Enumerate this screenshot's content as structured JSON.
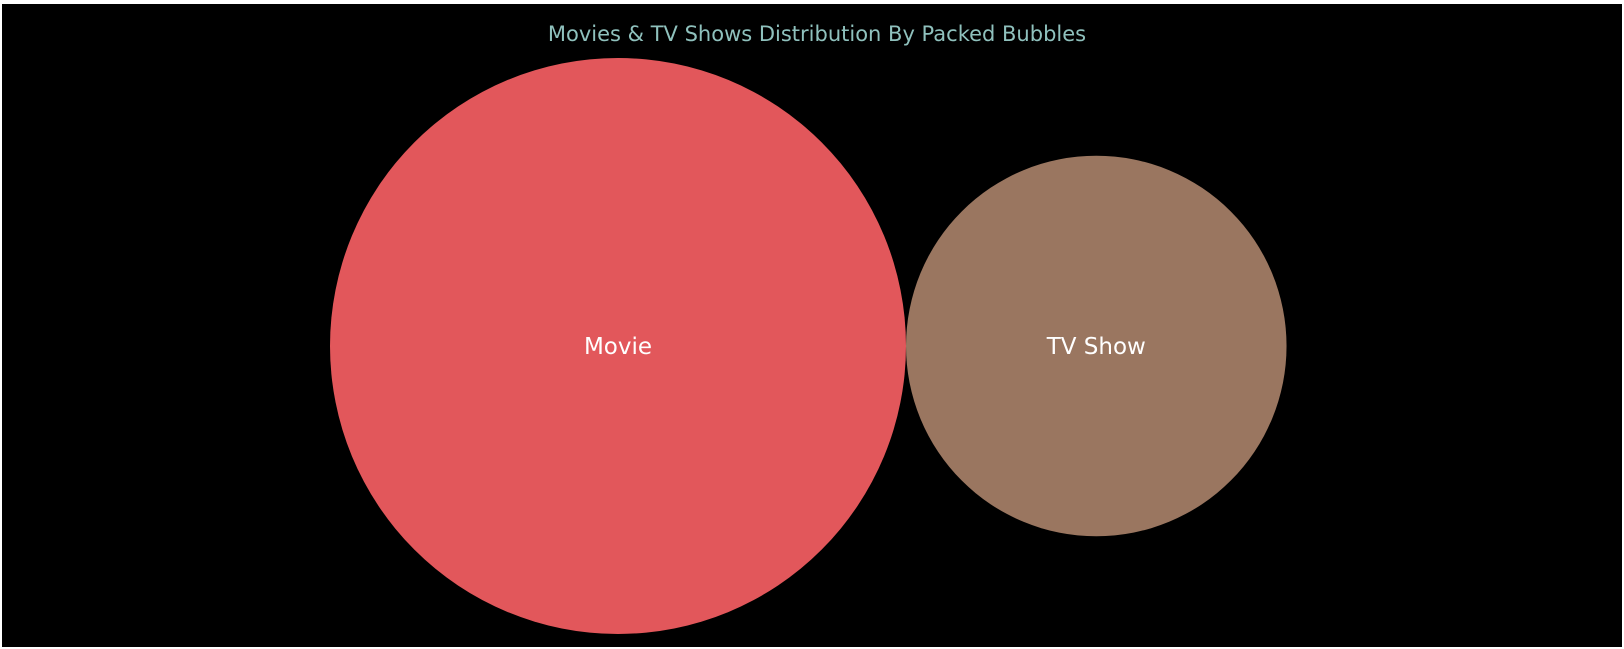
{
  "chart_data": {
    "type": "packed-bubbles",
    "title": "Movies & TV Shows Distribution By Packed Bubbles",
    "categories": [
      "Movie",
      "TV Show"
    ],
    "values": [
      6131,
      2676
    ],
    "colors": [
      "#e2575b",
      "#9a7660"
    ],
    "background": "#000000",
    "title_color": "#8fc1bd",
    "legend": "none",
    "grid": false
  }
}
